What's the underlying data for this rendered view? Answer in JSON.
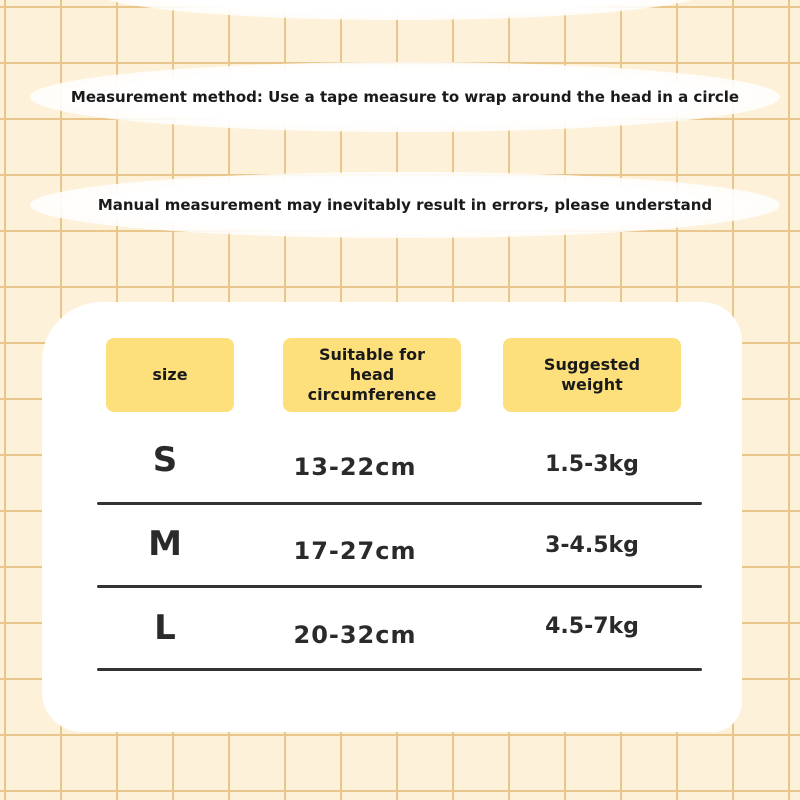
{
  "notes": {
    "method": "Measurement method: Use a tape measure to wrap around the head in a circle",
    "error": "Manual measurement may inevitably result in errors, please understand"
  },
  "table": {
    "headers": [
      "size",
      "Suitable for head circumference",
      "Suggested weight"
    ],
    "rows": [
      {
        "size": "S",
        "circumference": "13-22cm",
        "weight": "1.5-3kg"
      },
      {
        "size": "M",
        "circumference": "17-27cm",
        "weight": "3-4.5kg"
      },
      {
        "size": "L",
        "circumference": "20-32cm",
        "weight": "4.5-7kg"
      }
    ]
  },
  "colors": {
    "background": "#fdf1da",
    "grid": "#e9c78c",
    "header": "#fde07c"
  }
}
